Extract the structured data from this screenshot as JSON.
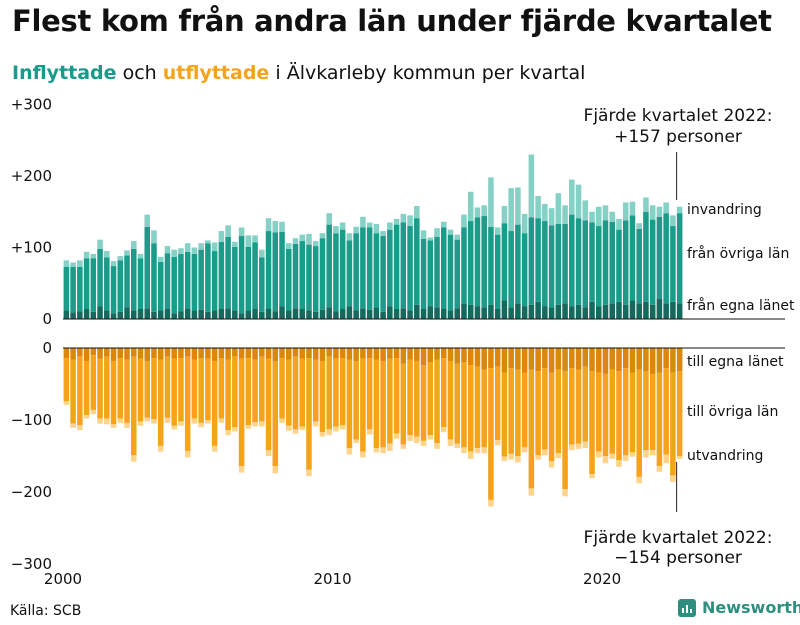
{
  "title": "Flest kom från andra län under fjärde kvartalet",
  "subtitle": {
    "in_label": "Inflyttade",
    "and": "och",
    "out_label": "utflyttade",
    "rest": "i Älvkarleby kommun per kvartal"
  },
  "colors": {
    "in_dark": "#15695d",
    "in_mid": "#1c9a8a",
    "in_light": "#86d1c6",
    "out_dark": "#d9870d",
    "out_mid": "#f5a31a",
    "out_light": "#ffd38a"
  },
  "source": "Källa: SCB",
  "brand": "Newsworthy",
  "chart_data": {
    "type": "bar",
    "stacked": true,
    "title": "Flest kom från andra län under fjärde kvartalet",
    "xlabel": "",
    "ylabel": "",
    "ylim": [
      -300,
      300
    ],
    "yticks": [
      "+300",
      "+200",
      "+100",
      "0",
      "0",
      "−100",
      "−200",
      "−300"
    ],
    "xticks": [
      "2000",
      "2010",
      "2020"
    ],
    "x_start": "2000 Q1",
    "x_end": "2022 Q4",
    "quarters": 92,
    "inflow": {
      "from_own_county": [
        12,
        9,
        11,
        14,
        10,
        18,
        12,
        8,
        10,
        16,
        12,
        14,
        15,
        10,
        12,
        14,
        8,
        11,
        15,
        12,
        13,
        10,
        12,
        14,
        15,
        12,
        8,
        12,
        14,
        10,
        15,
        11,
        18,
        12,
        15,
        14,
        12,
        10,
        13,
        16,
        11,
        14,
        18,
        12,
        15,
        13,
        16,
        10,
        18,
        14,
        15,
        12,
        20,
        14,
        18,
        16,
        14,
        12,
        15,
        22,
        20,
        18,
        16,
        20,
        14,
        26,
        16,
        22,
        18,
        20,
        24,
        18,
        16,
        20,
        22,
        18,
        20,
        16,
        24,
        18,
        20,
        22,
        24,
        20,
        26,
        22,
        24,
        20,
        28,
        22,
        24,
        22
      ],
      "from_other_counties": [
        61,
        64,
        62,
        71,
        75,
        80,
        74,
        66,
        72,
        73,
        86,
        71,
        114,
        96,
        68,
        78,
        79,
        80,
        79,
        79,
        84,
        96,
        83,
        94,
        100,
        89,
        108,
        89,
        93,
        76,
        108,
        110,
        104,
        86,
        90,
        95,
        92,
        92,
        100,
        116,
        109,
        111,
        92,
        108,
        113,
        115,
        104,
        106,
        107,
        118,
        120,
        118,
        121,
        98,
        92,
        99,
        114,
        106,
        96,
        106,
        117,
        124,
        128,
        109,
        104,
        108,
        107,
        110,
        102,
        122,
        117,
        119,
        115,
        113,
        111,
        128,
        121,
        122,
        111,
        112,
        118,
        114,
        101,
        118,
        119,
        104,
        126,
        119,
        115,
        126,
        106,
        126
      ],
      "immigration": [
        9,
        6,
        9,
        9,
        6,
        13,
        9,
        7,
        6,
        7,
        11,
        6,
        17,
        18,
        7,
        10,
        10,
        8,
        12,
        9,
        9,
        4,
        12,
        15,
        16,
        7,
        12,
        16,
        10,
        11,
        18,
        16,
        14,
        8,
        8,
        9,
        15,
        7,
        7,
        16,
        10,
        10,
        10,
        9,
        15,
        7,
        13,
        7,
        10,
        8,
        12,
        15,
        17,
        12,
        4,
        12,
        8,
        7,
        7,
        18,
        41,
        14,
        15,
        69,
        10,
        24,
        60,
        52,
        27,
        88,
        31,
        24,
        24,
        43,
        26,
        49,
        47,
        28,
        15,
        27,
        21,
        14,
        15,
        25,
        19,
        8,
        20,
        20,
        14,
        15,
        15,
        9
      ],
      "q4_2022_total": 157
    },
    "outflow": {
      "to_own_county": [
        14,
        16,
        12,
        18,
        10,
        15,
        12,
        18,
        14,
        16,
        12,
        15,
        18,
        14,
        16,
        12,
        15,
        14,
        12,
        16,
        14,
        15,
        18,
        14,
        16,
        12,
        15,
        14,
        16,
        12,
        15,
        18,
        14,
        16,
        12,
        15,
        14,
        16,
        18,
        12,
        15,
        14,
        16,
        18,
        15,
        14,
        16,
        18,
        15,
        14,
        22,
        16,
        18,
        24,
        20,
        16,
        14,
        18,
        22,
        20,
        24,
        26,
        30,
        28,
        26,
        34,
        28,
        30,
        34,
        30,
        32,
        28,
        34,
        30,
        32,
        28,
        30,
        26,
        32,
        34,
        36,
        30,
        32,
        28,
        34,
        30,
        32,
        36,
        34,
        28,
        34,
        32
      ],
      "to_other_counties": [
        60,
        89,
        95,
        75,
        76,
        83,
        86,
        88,
        84,
        88,
        137,
        87,
        79,
        85,
        120,
        85,
        93,
        88,
        131,
        82,
        90,
        85,
        118,
        84,
        98,
        98,
        149,
        93,
        87,
        90,
        127,
        146,
        84,
        92,
        101,
        94,
        155,
        86,
        99,
        101,
        94,
        93,
        123,
        109,
        129,
        99,
        123,
        120,
        118,
        105,
        112,
        105,
        105,
        105,
        101,
        116,
        96,
        109,
        111,
        118,
        120,
        113,
        108,
        183,
        102,
        117,
        119,
        120,
        104,
        165,
        117,
        113,
        123,
        116,
        164,
        106,
        103,
        104,
        143,
        110,
        114,
        117,
        124,
        121,
        111,
        149,
        110,
        106,
        130,
        120,
        143,
        118
      ],
      "emigration": [
        5,
        6,
        7,
        5,
        6,
        7,
        8,
        5,
        6,
        7,
        9,
        6,
        5,
        6,
        8,
        7,
        5,
        6,
        9,
        7,
        6,
        5,
        8,
        6,
        7,
        6,
        9,
        5,
        6,
        7,
        8,
        10,
        6,
        7,
        6,
        5,
        9,
        7,
        6,
        8,
        7,
        6,
        9,
        5,
        8,
        7,
        6,
        8,
        10,
        7,
        6,
        8,
        9,
        7,
        6,
        8,
        7,
        9,
        6,
        8,
        10,
        7,
        8,
        9,
        7,
        6,
        8,
        9,
        7,
        10,
        6,
        8,
        9,
        7,
        10,
        8,
        7,
        9,
        6,
        8,
        10,
        7,
        9,
        8,
        6,
        9,
        10,
        7,
        8,
        12,
        9,
        4
      ],
      "q4_2022_total": -154
    },
    "series": [
      {
        "name": "från egna länet",
        "group": "inflyttade"
      },
      {
        "name": "från övriga län",
        "group": "inflyttade"
      },
      {
        "name": "invandring",
        "group": "inflyttade"
      },
      {
        "name": "till egna länet",
        "group": "utflyttade"
      },
      {
        "name": "till övriga län",
        "group": "utflyttade"
      },
      {
        "name": "utvandring",
        "group": "utflyttade"
      }
    ],
    "annotations": {
      "top_line1": "Fjärde kvartalet 2022:",
      "top_line2": "+157 personer",
      "bottom_line1": "Fjärde kvartalet 2022:",
      "bottom_line2": "−154 personer"
    }
  }
}
